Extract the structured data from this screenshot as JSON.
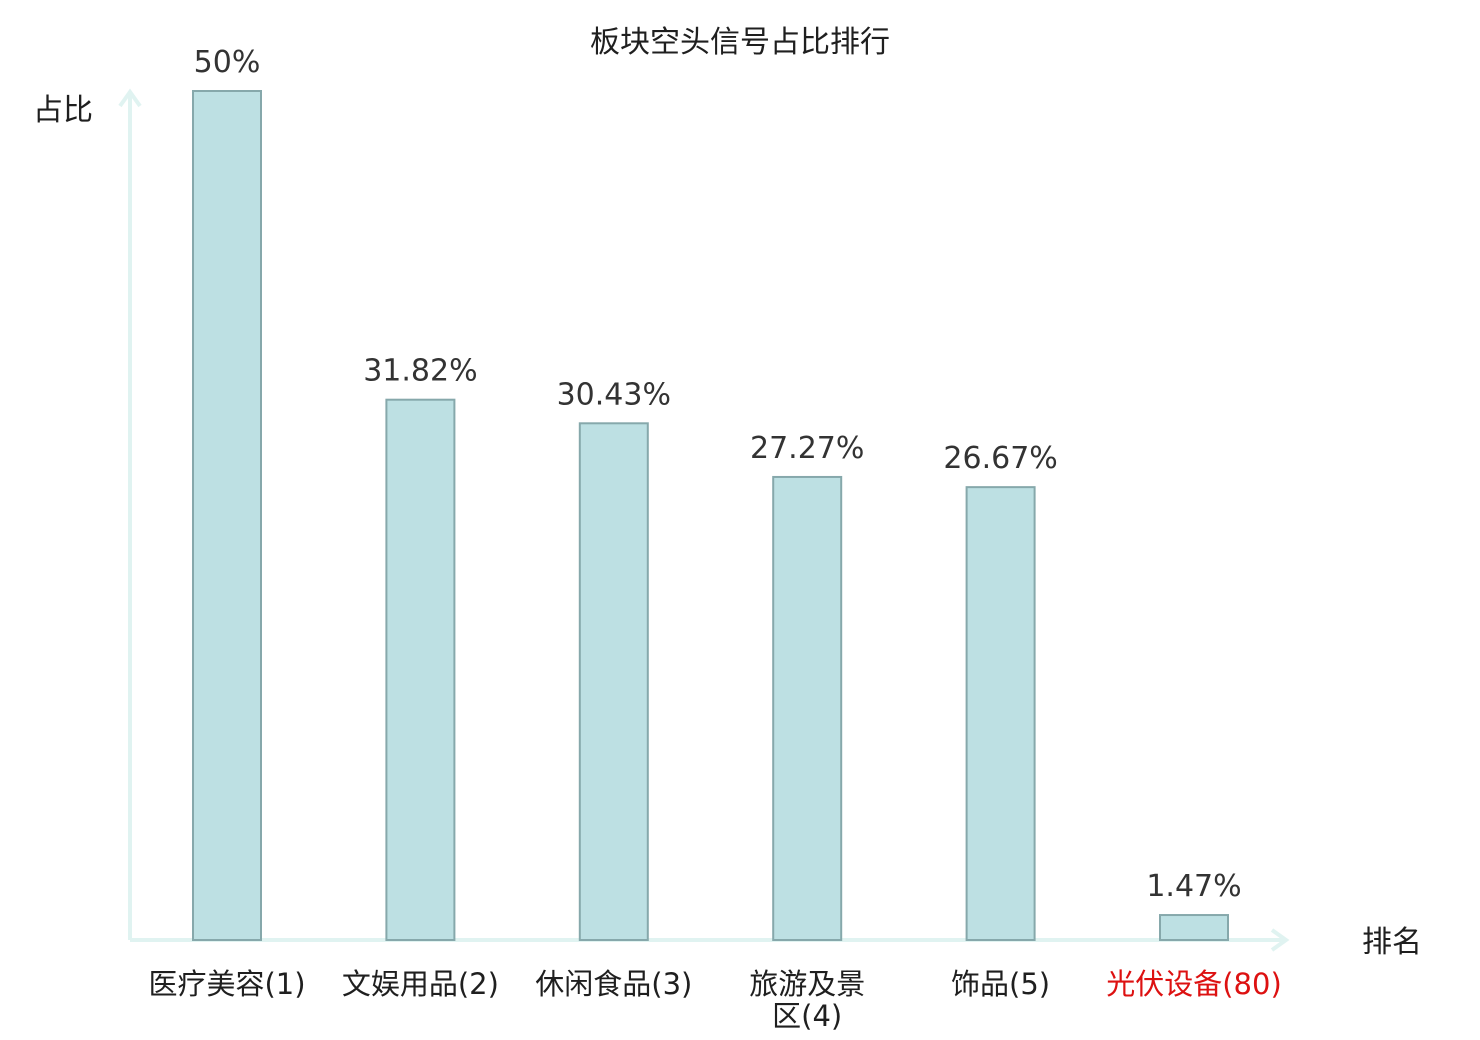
{
  "chart_data": {
    "type": "bar",
    "title": "板块空头信号占比排行",
    "ylabel": "占比",
    "xlabel": "排名",
    "ylim": [
      0,
      50
    ],
    "grid": false,
    "categories": [
      {
        "name": "医疗美容",
        "rank": "(1)",
        "lines": [
          "医疗美容(1)"
        ],
        "highlight": false
      },
      {
        "name": "文娱用品",
        "rank": "(2)",
        "lines": [
          "文娱用品(2)"
        ],
        "highlight": false
      },
      {
        "name": "休闲食品",
        "rank": "(3)",
        "lines": [
          "休闲食品(3)"
        ],
        "highlight": false
      },
      {
        "name": "旅游及景区",
        "rank": "(4)",
        "lines": [
          "旅游及景",
          "区(4)"
        ],
        "highlight": false
      },
      {
        "name": "饰品",
        "rank": "(5)",
        "lines": [
          "饰品(5)"
        ],
        "highlight": false
      },
      {
        "name": "光伏设备",
        "rank": "(80)",
        "lines": [
          "光伏设备(80)"
        ],
        "highlight": true
      }
    ],
    "values": [
      50,
      31.82,
      30.43,
      27.27,
      26.67,
      1.47
    ],
    "value_labels": [
      "50%",
      "31.82%",
      "30.43%",
      "27.27%",
      "26.67%",
      "1.47%"
    ]
  },
  "colors": {
    "bar_fill": "#bde0e3",
    "bar_stroke": "#86a8ab",
    "axis": "#e0f3f1",
    "text": "#1f1f1f",
    "highlight": "#dd1111"
  }
}
